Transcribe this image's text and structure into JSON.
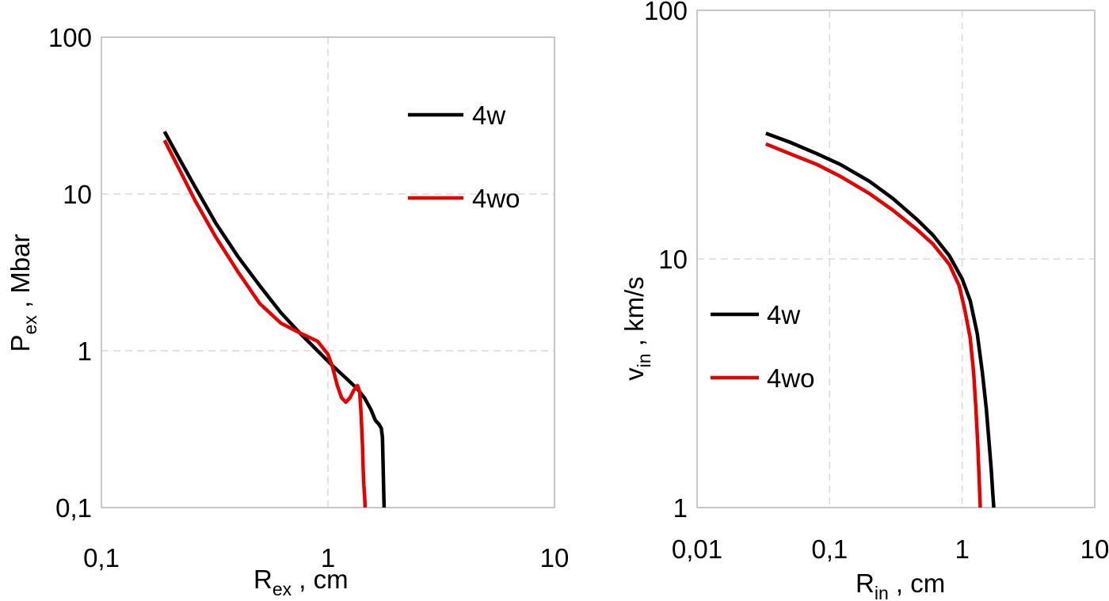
{
  "chart_data": [
    {
      "type": "line",
      "xscale": "log",
      "yscale": "log",
      "xlim": [
        0.1,
        10
      ],
      "ylim": [
        0.1,
        100
      ],
      "grid": true,
      "legend_position": "top-right",
      "xlabel": {
        "main": "R",
        "sub": "ex",
        "rest": " , cm"
      },
      "ylabel": {
        "main": "P",
        "sub": "ex",
        "rest": " , Mbar"
      },
      "xticks": [
        {
          "value": 0.1,
          "label": "0,1"
        },
        {
          "value": 1,
          "label": "1"
        },
        {
          "value": 10,
          "label": "10"
        }
      ],
      "yticks": [
        {
          "value": 0.1,
          "label": "0,1"
        },
        {
          "value": 1,
          "label": "1"
        },
        {
          "value": 10,
          "label": "10"
        },
        {
          "value": 100,
          "label": "100"
        }
      ],
      "series": [
        {
          "name": "4w",
          "color": "#000000",
          "x": [
            0.19,
            0.22,
            0.26,
            0.32,
            0.4,
            0.5,
            0.62,
            0.75,
            0.9,
            1.05,
            1.2,
            1.35,
            1.45,
            1.55,
            1.62,
            1.68,
            1.72,
            1.74,
            1.75,
            1.76,
            1.77
          ],
          "y": [
            25,
            17,
            11,
            6.5,
            4.0,
            2.6,
            1.75,
            1.3,
            1.0,
            0.8,
            0.67,
            0.57,
            0.5,
            0.42,
            0.36,
            0.34,
            0.32,
            0.28,
            0.2,
            0.14,
            0.1
          ]
        },
        {
          "name": "4wo",
          "color": "#e60000",
          "x": [
            0.19,
            0.22,
            0.26,
            0.32,
            0.4,
            0.5,
            0.62,
            0.75,
            0.9,
            1.0,
            1.05,
            1.1,
            1.15,
            1.2,
            1.25,
            1.3,
            1.35,
            1.38,
            1.4,
            1.42,
            1.43,
            1.44,
            1.45,
            1.46
          ],
          "y": [
            22,
            14.5,
            9.0,
            5.3,
            3.2,
            2.0,
            1.5,
            1.3,
            1.15,
            0.95,
            0.78,
            0.6,
            0.5,
            0.47,
            0.5,
            0.56,
            0.6,
            0.55,
            0.4,
            0.25,
            0.18,
            0.14,
            0.12,
            0.1
          ]
        }
      ]
    },
    {
      "type": "line",
      "xscale": "log",
      "yscale": "log",
      "xlim": [
        0.01,
        10
      ],
      "ylim": [
        1,
        100
      ],
      "grid": true,
      "legend_position": "middle-left",
      "xlabel": {
        "main": "R",
        "sub": "in",
        "rest": " , cm"
      },
      "ylabel": {
        "main": "v",
        "sub": "in",
        "rest": " , km/s"
      },
      "xticks": [
        {
          "value": 0.01,
          "label": "0,01"
        },
        {
          "value": 0.1,
          "label": "0,1"
        },
        {
          "value": 1,
          "label": "1"
        },
        {
          "value": 10,
          "label": "10"
        }
      ],
      "yticks": [
        {
          "value": 1,
          "label": "1"
        },
        {
          "value": 10,
          "label": "10"
        },
        {
          "value": 100,
          "label": "100"
        }
      ],
      "series": [
        {
          "name": "4w",
          "color": "#000000",
          "x": [
            0.033,
            0.05,
            0.08,
            0.12,
            0.2,
            0.3,
            0.45,
            0.6,
            0.8,
            1.0,
            1.15,
            1.3,
            1.42,
            1.52,
            1.6,
            1.66,
            1.7,
            1.72,
            1.73
          ],
          "y": [
            32,
            29.5,
            26.5,
            24,
            20.5,
            17.5,
            14.5,
            12.5,
            10.3,
            8.3,
            6.8,
            5.0,
            3.5,
            2.5,
            1.8,
            1.4,
            1.15,
            1.05,
            1
          ]
        },
        {
          "name": "4wo",
          "color": "#e60000",
          "x": [
            0.033,
            0.05,
            0.08,
            0.12,
            0.2,
            0.3,
            0.45,
            0.6,
            0.8,
            0.95,
            1.05,
            1.15,
            1.22,
            1.27,
            1.31,
            1.34,
            1.36,
            1.37
          ],
          "y": [
            29,
            26.5,
            24,
            21.5,
            18.3,
            15.7,
            13.2,
            11.5,
            9.5,
            7.8,
            6.2,
            4.8,
            3.5,
            2.5,
            1.8,
            1.35,
            1.1,
            1
          ]
        }
      ]
    }
  ]
}
